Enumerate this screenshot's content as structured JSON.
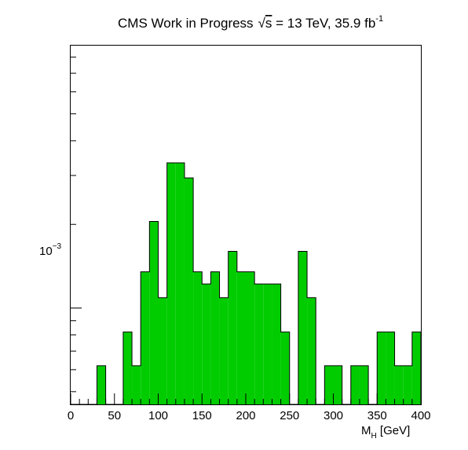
{
  "chart_data": {
    "type": "bar",
    "title": {
      "prefix": "CMS Work in Progress",
      "sqrt_symbol": "√",
      "s": "s",
      "energy": " = 13 TeV, 35.9 fb",
      "exponent": "-1"
    },
    "xlabel": {
      "main": "M",
      "sub": "H",
      "unit": " [GeV]"
    },
    "ylabel": "",
    "x_scale": "linear",
    "y_scale": "log",
    "xlim": [
      0,
      400
    ],
    "ylim": [
      0.00045,
      0.0088
    ],
    "x_ticks": [
      0,
      50,
      100,
      150,
      200,
      250,
      300,
      350,
      400
    ],
    "x_tick_labels": [
      "0",
      "50",
      "100",
      "150",
      "200",
      "250",
      "300",
      "350",
      "400"
    ],
    "y_tick_label": {
      "base": "10",
      "exponent": "−3",
      "value": 0.001
    },
    "bin_width": 10,
    "bin_edges": [
      0,
      10,
      20,
      30,
      40,
      50,
      60,
      70,
      80,
      90,
      100,
      110,
      120,
      130,
      140,
      150,
      160,
      170,
      180,
      190,
      200,
      210,
      220,
      230,
      240,
      250,
      260,
      270,
      280,
      290,
      300,
      310,
      320,
      330,
      340,
      350,
      360,
      370,
      380,
      390,
      400
    ],
    "values": [
      0,
      0,
      0,
      0.00062,
      0,
      0,
      0.00082,
      0.00062,
      0.00135,
      0.00205,
      0.00109,
      0.00333,
      0.00333,
      0.00294,
      0.00135,
      0.00122,
      0.00135,
      0.00109,
      0.0016,
      0.00135,
      0.00135,
      0.00122,
      0.00122,
      0.00122,
      0.00082,
      0,
      0.0016,
      0.00109,
      0,
      0.00062,
      0.00062,
      0,
      0.00062,
      0.00062,
      0,
      0.00082,
      0.00082,
      0.00062,
      0.00062,
      0.00082
    ],
    "colors": {
      "fill": "#00cc00",
      "line": "#000000",
      "background": "#ffffff"
    },
    "grid": false,
    "legend": "none"
  }
}
